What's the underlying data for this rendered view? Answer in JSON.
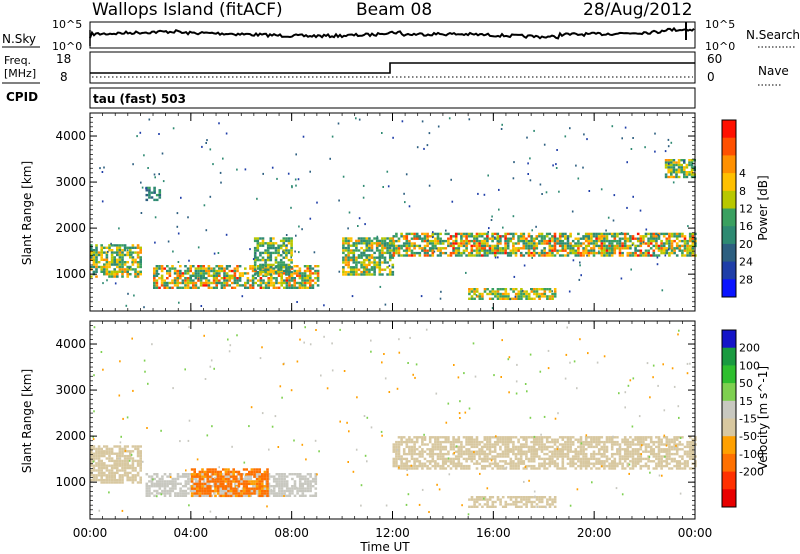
{
  "header": {
    "station": "Wallops Island (fitACF)",
    "beam": "Beam 08",
    "date": "28/Aug/2012"
  },
  "panels": {
    "nsky": {
      "label": "N.Sky",
      "ticks": [
        "10^5",
        "10^0"
      ],
      "right_label": "N.Search",
      "right_ticks": [
        "10^5",
        "10^0"
      ]
    },
    "freq": {
      "label_line1": "Freq.",
      "label_line2": "[MHz]",
      "ticks": [
        "18",
        "8"
      ],
      "right_label": "Nave",
      "right_ticks": [
        "60",
        "0"
      ],
      "cpid_label": "CPID",
      "cpid_text": "tau (fast) 503"
    }
  },
  "colors": {
    "power_scale": [
      "#0a14ff",
      "#1f3ea8",
      "#2d5f80",
      "#2e8a72",
      "#3aa060",
      "#b8c800",
      "#ffc000",
      "#ff9000",
      "#ff5000",
      "#ff1000"
    ],
    "velocity_scale": [
      "#1515c8",
      "#1a9a40",
      "#2fbf2f",
      "#7ed050",
      "#c8c8c0",
      "#d8c8a0",
      "#ffa000",
      "#ff7000",
      "#ff3000",
      "#e80000"
    ]
  },
  "chart_data": [
    {
      "type": "heatmap",
      "title": "Power",
      "xlabel": "",
      "ylabel": "Slant Range [km]",
      "ylim": [
        200,
        4500
      ],
      "yticks": [
        "1000",
        "2000",
        "3000",
        "4000"
      ],
      "xlim_hours": [
        0,
        24
      ],
      "colorbar_label": "Power [dB]",
      "colorbar_ticks": [
        "4",
        "8",
        "12",
        "16",
        "20",
        "24",
        "28"
      ],
      "features": [
        {
          "hours": [
            0.0,
            2.0
          ],
          "range_km": [
            950,
            1650
          ],
          "level_db": [
            10,
            24
          ]
        },
        {
          "hours": [
            2.2,
            2.8
          ],
          "range_km": [
            2600,
            2900
          ],
          "level_db": [
            8,
            14
          ]
        },
        {
          "hours": [
            2.5,
            9.0
          ],
          "range_km": [
            700,
            1200
          ],
          "level_db": [
            10,
            28
          ]
        },
        {
          "hours": [
            6.5,
            8.0
          ],
          "range_km": [
            1000,
            1800
          ],
          "level_db": [
            10,
            20
          ]
        },
        {
          "hours": [
            10.0,
            12.0
          ],
          "range_km": [
            1000,
            1800
          ],
          "level_db": [
            10,
            24
          ]
        },
        {
          "hours": [
            12.0,
            24.0
          ],
          "range_km": [
            1400,
            1900
          ],
          "level_db": [
            10,
            28
          ]
        },
        {
          "hours": [
            15.0,
            18.5
          ],
          "range_km": [
            450,
            700
          ],
          "level_db": [
            12,
            24
          ]
        },
        {
          "hours": [
            22.8,
            24.0
          ],
          "range_km": [
            3100,
            3500
          ],
          "level_db": [
            10,
            22
          ]
        }
      ]
    },
    {
      "type": "heatmap",
      "title": "Velocity",
      "xlabel": "Time UT",
      "ylabel": "Slant Range [km]",
      "ylim": [
        200,
        4500
      ],
      "yticks": [
        "1000",
        "2000",
        "3000",
        "4000"
      ],
      "xticks": [
        "00:00",
        "04:00",
        "08:00",
        "12:00",
        "16:00",
        "20:00",
        "00:00"
      ],
      "xlim_hours": [
        0,
        24
      ],
      "colorbar_label": "Velocity [m s^-1]",
      "colorbar_ticks": [
        "200",
        "100",
        "50",
        "15",
        "-15",
        "-50",
        "-100",
        "-200"
      ],
      "features": [
        {
          "hours": [
            0.0,
            2.0
          ],
          "range_km": [
            1000,
            1800
          ],
          "velocity_ms": [
            -15,
            15
          ]
        },
        {
          "hours": [
            2.2,
            9.0
          ],
          "range_km": [
            700,
            1200
          ],
          "velocity_ms": [
            15,
            50
          ]
        },
        {
          "hours": [
            4.0,
            7.0
          ],
          "range_km": [
            700,
            1300
          ],
          "velocity_ms": [
            -100,
            -15
          ]
        },
        {
          "hours": [
            12.0,
            24.0
          ],
          "range_km": [
            1300,
            2000
          ],
          "velocity_ms": [
            -15,
            15
          ]
        },
        {
          "hours": [
            15.0,
            18.5
          ],
          "range_km": [
            450,
            700
          ],
          "velocity_ms": [
            -15,
            15
          ]
        }
      ]
    }
  ]
}
